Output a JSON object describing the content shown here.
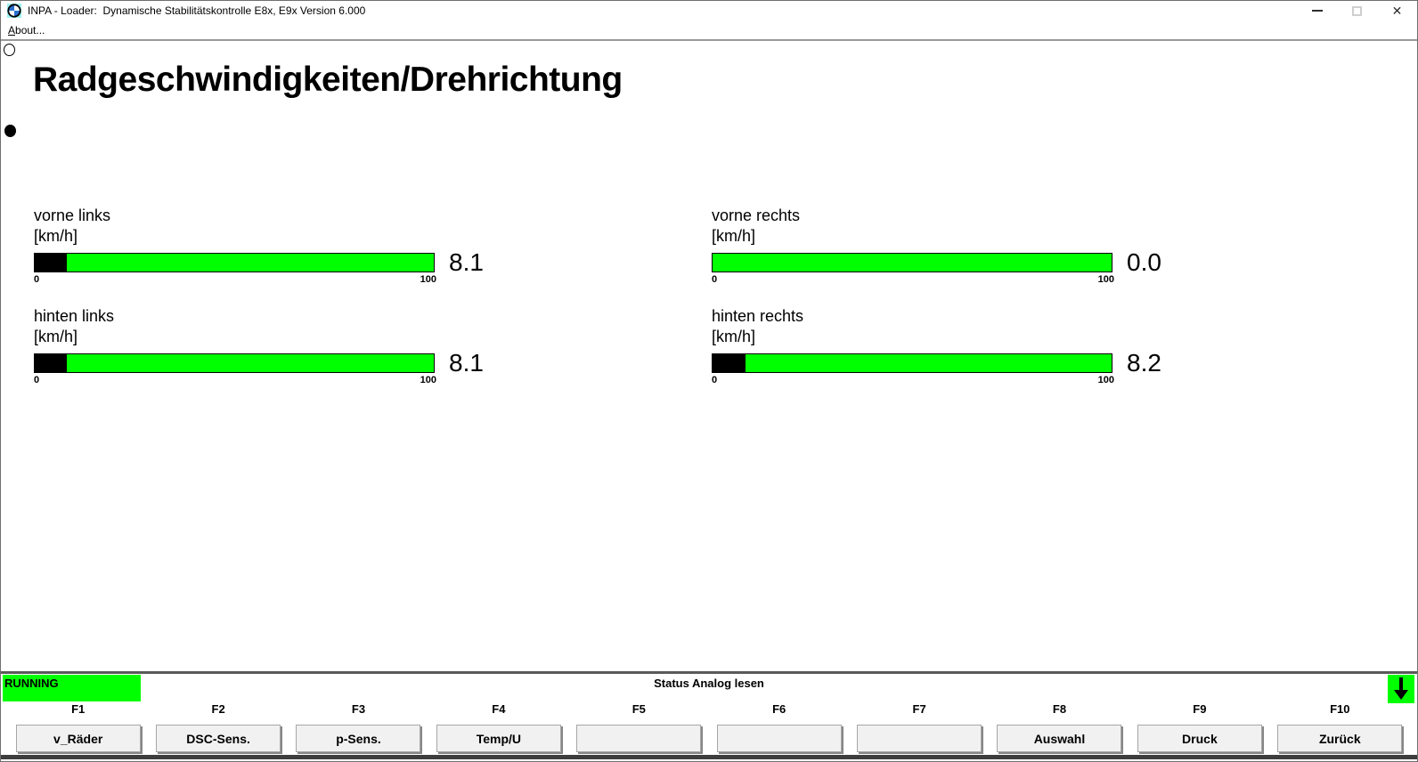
{
  "window": {
    "title": "INPA - Loader:  Dynamische Stabilitätskontrolle E8x, E9x Version 6.000",
    "controls": [
      {
        "name": "minimize"
      },
      {
        "name": "maximize"
      },
      {
        "name": "close"
      }
    ]
  },
  "menu": {
    "about_initial": "A",
    "about_rest": "bout..."
  },
  "page": {
    "title": "Radgeschwindigkeiten/Drehrichtung"
  },
  "indicators": {
    "top": "empty-circle",
    "bottom": "filled-circle"
  },
  "gauges": [
    {
      "label": "vorne links",
      "unit": "[km/h]",
      "value": 8.1,
      "display_value": "8.1",
      "min": 0,
      "max": 100,
      "min_label": "0",
      "max_label": "100"
    },
    {
      "label": "vorne rechts",
      "unit": "[km/h]",
      "value": 0.0,
      "display_value": "0.0",
      "min": 0,
      "max": 100,
      "min_label": "0",
      "max_label": "100"
    },
    {
      "label": "hinten links",
      "unit": "[km/h]",
      "value": 8.1,
      "display_value": "8.1",
      "min": 0,
      "max": 100,
      "min_label": "0",
      "max_label": "100"
    },
    {
      "label": "hinten rechts",
      "unit": "[km/h]",
      "value": 8.2,
      "display_value": "8.2",
      "min": 0,
      "max": 100,
      "min_label": "0",
      "max_label": "100"
    }
  ],
  "statusbar": {
    "running_label": "RUNNING",
    "status_text": "Status Analog lesen",
    "scroll_icon": "arrow-down"
  },
  "function_keys": [
    {
      "key": "F1",
      "label": "v_Räder"
    },
    {
      "key": "F2",
      "label": "DSC-Sens."
    },
    {
      "key": "F3",
      "label": "p-Sens."
    },
    {
      "key": "F4",
      "label": "Temp/U"
    },
    {
      "key": "F5",
      "label": ""
    },
    {
      "key": "F6",
      "label": ""
    },
    {
      "key": "F7",
      "label": ""
    },
    {
      "key": "F8",
      "label": "Auswahl"
    },
    {
      "key": "F9",
      "label": "Druck"
    },
    {
      "key": "F10",
      "label": "Zurück"
    }
  ],
  "colors": {
    "gauge_green": "#00ff00",
    "gauge_fill_black": "#000000",
    "running_bg": "#00ff00",
    "scroll_indicator_bg": "#00ff00",
    "statusbar_line": "#5a5a5a"
  }
}
